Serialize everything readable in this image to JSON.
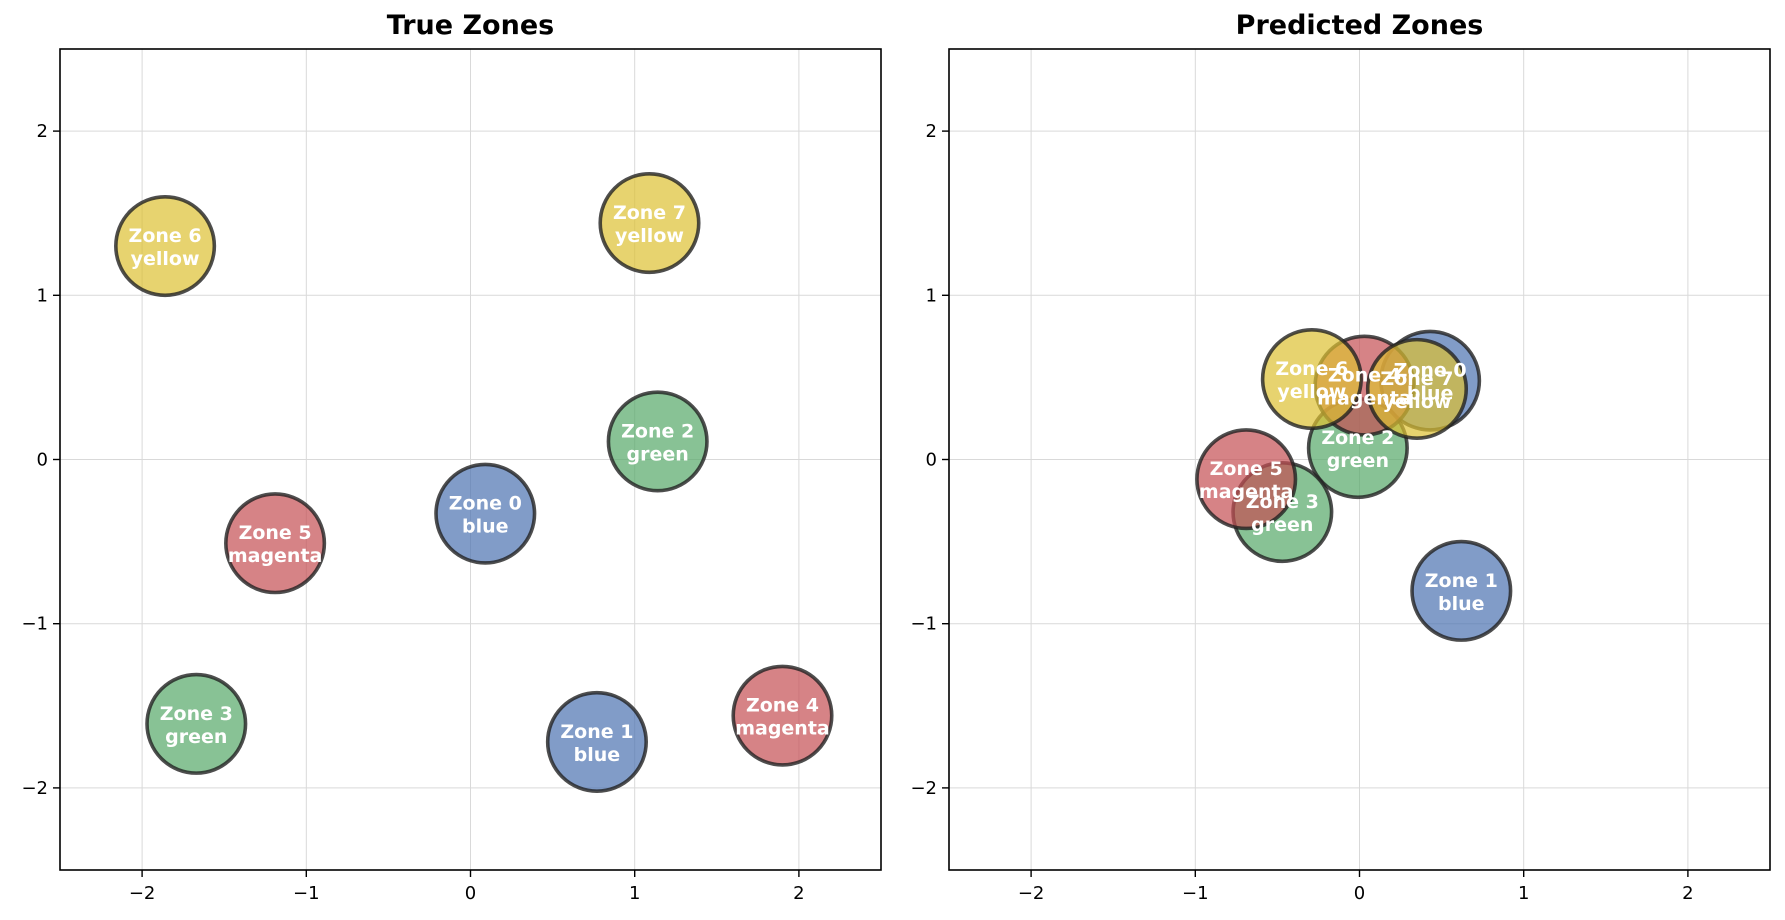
{
  "chart_data": [
    {
      "type": "scatter",
      "title": "True Zones",
      "xlabel": "",
      "ylabel": "",
      "xlim": [
        -2.5,
        2.5
      ],
      "ylim": [
        -2.5,
        2.5
      ],
      "xticks": [
        -2,
        -1,
        0,
        1,
        2
      ],
      "yticks": [
        -2,
        -1,
        0,
        1,
        2
      ],
      "grid": true,
      "zone_radius": 0.3,
      "points": [
        {
          "label": "Zone 0",
          "color_name": "blue",
          "x": 0.09,
          "y": -0.33,
          "color": "#4c72b0"
        },
        {
          "label": "Zone 1",
          "color_name": "blue",
          "x": 0.77,
          "y": -1.72,
          "color": "#4c72b0"
        },
        {
          "label": "Zone 2",
          "color_name": "green",
          "x": 1.14,
          "y": 0.11,
          "color": "#55a868"
        },
        {
          "label": "Zone 3",
          "color_name": "green",
          "x": -1.67,
          "y": -1.61,
          "color": "#55a868"
        },
        {
          "label": "Zone 4",
          "color_name": "magenta",
          "x": 1.9,
          "y": -1.56,
          "color": "#c44e52"
        },
        {
          "label": "Zone 5",
          "color_name": "magenta",
          "x": -1.19,
          "y": -0.51,
          "color": "#c44e52"
        },
        {
          "label": "Zone 6",
          "color_name": "yellow",
          "x": -1.86,
          "y": 1.3,
          "color": "#ddc032"
        },
        {
          "label": "Zone 7",
          "color_name": "yellow",
          "x": 1.09,
          "y": 1.44,
          "color": "#ddc032"
        }
      ]
    },
    {
      "type": "scatter",
      "title": "Predicted Zones",
      "xlabel": "",
      "ylabel": "",
      "xlim": [
        -2.5,
        2.5
      ],
      "ylim": [
        -2.5,
        2.5
      ],
      "xticks": [
        -2,
        -1,
        0,
        1,
        2
      ],
      "yticks": [
        -2,
        -1,
        0,
        1,
        2
      ],
      "grid": true,
      "zone_radius": 0.3,
      "points": [
        {
          "label": "Zone 0",
          "color_name": "blue",
          "x": 0.43,
          "y": 0.48,
          "color": "#4c72b0"
        },
        {
          "label": "Zone 1",
          "color_name": "blue",
          "x": 0.62,
          "y": -0.8,
          "color": "#4c72b0"
        },
        {
          "label": "Zone 2",
          "color_name": "green",
          "x": -0.01,
          "y": 0.07,
          "color": "#55a868"
        },
        {
          "label": "Zone 3",
          "color_name": "green",
          "x": -0.47,
          "y": -0.32,
          "color": "#55a868"
        },
        {
          "label": "Zone 4",
          "color_name": "magenta",
          "x": 0.03,
          "y": 0.45,
          "color": "#c44e52"
        },
        {
          "label": "Zone 5",
          "color_name": "magenta",
          "x": -0.69,
          "y": -0.12,
          "color": "#c44e52"
        },
        {
          "label": "Zone 6",
          "color_name": "yellow",
          "x": -0.29,
          "y": 0.49,
          "color": "#ddc032"
        },
        {
          "label": "Zone 7",
          "color_name": "yellow",
          "x": 0.35,
          "y": 0.43,
          "color": "#ddc032"
        }
      ]
    }
  ]
}
